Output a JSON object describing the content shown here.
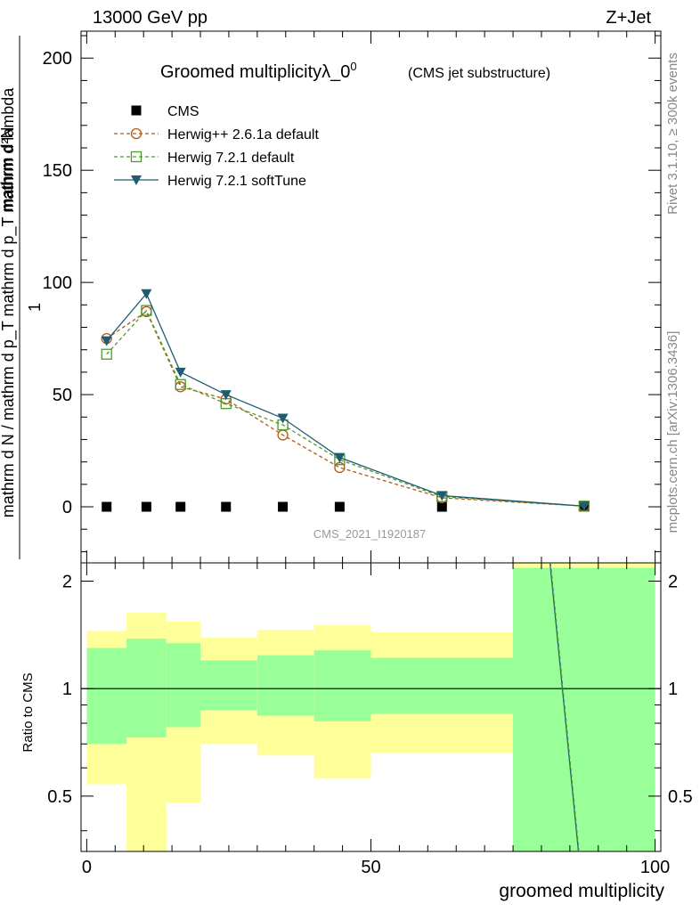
{
  "header": {
    "left": "13000 GeV pp",
    "right": "Z+Jet"
  },
  "side_labels": {
    "rivet": "Rivet 3.1.10, ≥ 300k events",
    "mcplots": "mcplots.cern.ch [arXiv:1306.3436]"
  },
  "watermark": "CMS_2021_I1920187",
  "chart_data": [
    {
      "panel": "main",
      "type": "line",
      "title_main": "Groomed multiplicityλ_0",
      "title_sup": "0",
      "title_sub": "(CMS jet substructure)",
      "ylabel": {
        "numerator": "mathrm d²N",
        "denominator": "mathrm d p_T mathrm d lambda",
        "prefactor_num": "1",
        "prefactor_den": "mathrm d N / mathrm d p_T"
      },
      "xlim": [
        -1,
        101
      ],
      "ylim": [
        -25,
        212
      ],
      "yticks": [
        0,
        50,
        100,
        150,
        200
      ],
      "legend_position": "top-left",
      "series": [
        {
          "name": "CMS",
          "color": "#000000",
          "marker": "square",
          "x": [
            3.5,
            10.5,
            16.5,
            24.5,
            34.5,
            44.5,
            62.5,
            87.5
          ],
          "y": [
            0,
            0,
            0,
            0,
            0,
            0,
            0,
            0
          ]
        },
        {
          "name": "Herwig++ 2.6.1a default",
          "color": "#b05a14",
          "marker": "circle-open",
          "dash": "dashed",
          "x": [
            3.5,
            10.5,
            16.5,
            24.5,
            34.5,
            44.5,
            62.5,
            87.5
          ],
          "y": [
            75,
            87,
            53.5,
            48,
            32,
            17.5,
            4,
            0.3
          ]
        },
        {
          "name": "Herwig 7.2.1 default",
          "color": "#4c9a2a",
          "marker": "square-open",
          "dash": "dashed",
          "x": [
            3.5,
            10.5,
            16.5,
            24.5,
            34.5,
            44.5,
            62.5,
            87.5
          ],
          "y": [
            68,
            87.5,
            54.5,
            46,
            36.5,
            21,
            4.5,
            0.3
          ]
        },
        {
          "name": "Herwig 7.2.1 softTune",
          "color": "#1f5c72",
          "marker": "triangle-down",
          "dash": "solid",
          "x": [
            3.5,
            10.5,
            16.5,
            24.5,
            34.5,
            44.5,
            62.5,
            87.5
          ],
          "y": [
            74,
            95,
            60,
            50,
            39.5,
            22,
            5,
            0.3
          ]
        }
      ]
    },
    {
      "panel": "ratio",
      "type": "area",
      "ylabel": "Ratio to CMS",
      "xlabel": "groomed multiplicity",
      "xlim": [
        -1,
        101
      ],
      "ylim": [
        0.35,
        2.25
      ],
      "xticks": [
        0,
        50,
        100
      ],
      "yticks": [
        0.5,
        1,
        2
      ],
      "reference_line": 1,
      "bins": [
        {
          "lo": 0,
          "hi": 7,
          "inner": [
            0.7,
            1.3
          ],
          "outer": [
            0.54,
            1.45
          ]
        },
        {
          "lo": 7,
          "hi": 14,
          "inner": [
            0.73,
            1.38
          ],
          "outer": [
            0.35,
            1.63
          ]
        },
        {
          "lo": 14,
          "hi": 20,
          "inner": [
            0.78,
            1.34
          ],
          "outer": [
            0.48,
            1.54
          ]
        },
        {
          "lo": 20,
          "hi": 30,
          "inner": [
            0.87,
            1.2
          ],
          "outer": [
            0.7,
            1.39
          ]
        },
        {
          "lo": 30,
          "hi": 40,
          "inner": [
            0.84,
            1.24
          ],
          "outer": [
            0.65,
            1.46
          ]
        },
        {
          "lo": 40,
          "hi": 50,
          "inner": [
            0.81,
            1.28
          ],
          "outer": [
            0.56,
            1.51
          ]
        },
        {
          "lo": 50,
          "hi": 75,
          "inner": [
            0.85,
            1.22
          ],
          "outer": [
            0.66,
            1.44
          ]
        },
        {
          "lo": 75,
          "hi": 100,
          "inner": [
            0.35,
            2.18
          ],
          "outer": [
            0.35,
            2.25
          ]
        }
      ],
      "mc_lines": [
        {
          "name": "Herwig 7.2.1 softTune",
          "color": "#1f5c72",
          "x": [
            81.5,
            86.5
          ],
          "y": [
            2.25,
            0.35
          ]
        },
        {
          "name": "Herwig 7.2.1 default",
          "color": "#4c9a2a",
          "x": [
            81.6,
            86.6
          ],
          "y": [
            2.25,
            0.35
          ]
        }
      ]
    }
  ],
  "colors": {
    "inner_band": "#99ff99",
    "outer_band": "#ffff99",
    "frame": "#000000"
  }
}
